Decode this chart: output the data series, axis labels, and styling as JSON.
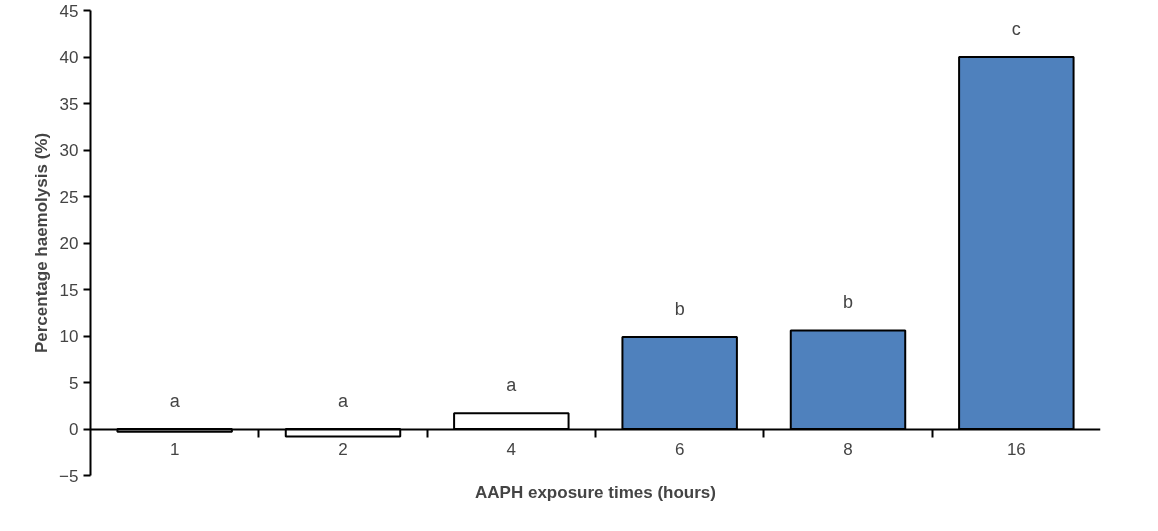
{
  "chart_data": {
    "type": "bar",
    "xlabel": "AAPH exposure times (hours)",
    "ylabel": "Percentage haemolysis (%)",
    "categories": [
      "1",
      "2",
      "4",
      "6",
      "8",
      "16"
    ],
    "values": [
      -0.3,
      -0.8,
      1.7,
      9.9,
      10.6,
      40.0
    ],
    "colors": [
      "#ffffff",
      "#ffffff",
      "#ffffff",
      "#4f81bd",
      "#4f81bd",
      "#4f81bd"
    ],
    "ylim": [
      -5,
      45
    ],
    "yticks": [
      -5,
      0,
      5,
      10,
      15,
      20,
      25,
      30,
      35,
      40,
      45
    ],
    "grid": false,
    "annotations": [
      "a",
      "a",
      "a",
      "b",
      "b",
      "c"
    ]
  }
}
